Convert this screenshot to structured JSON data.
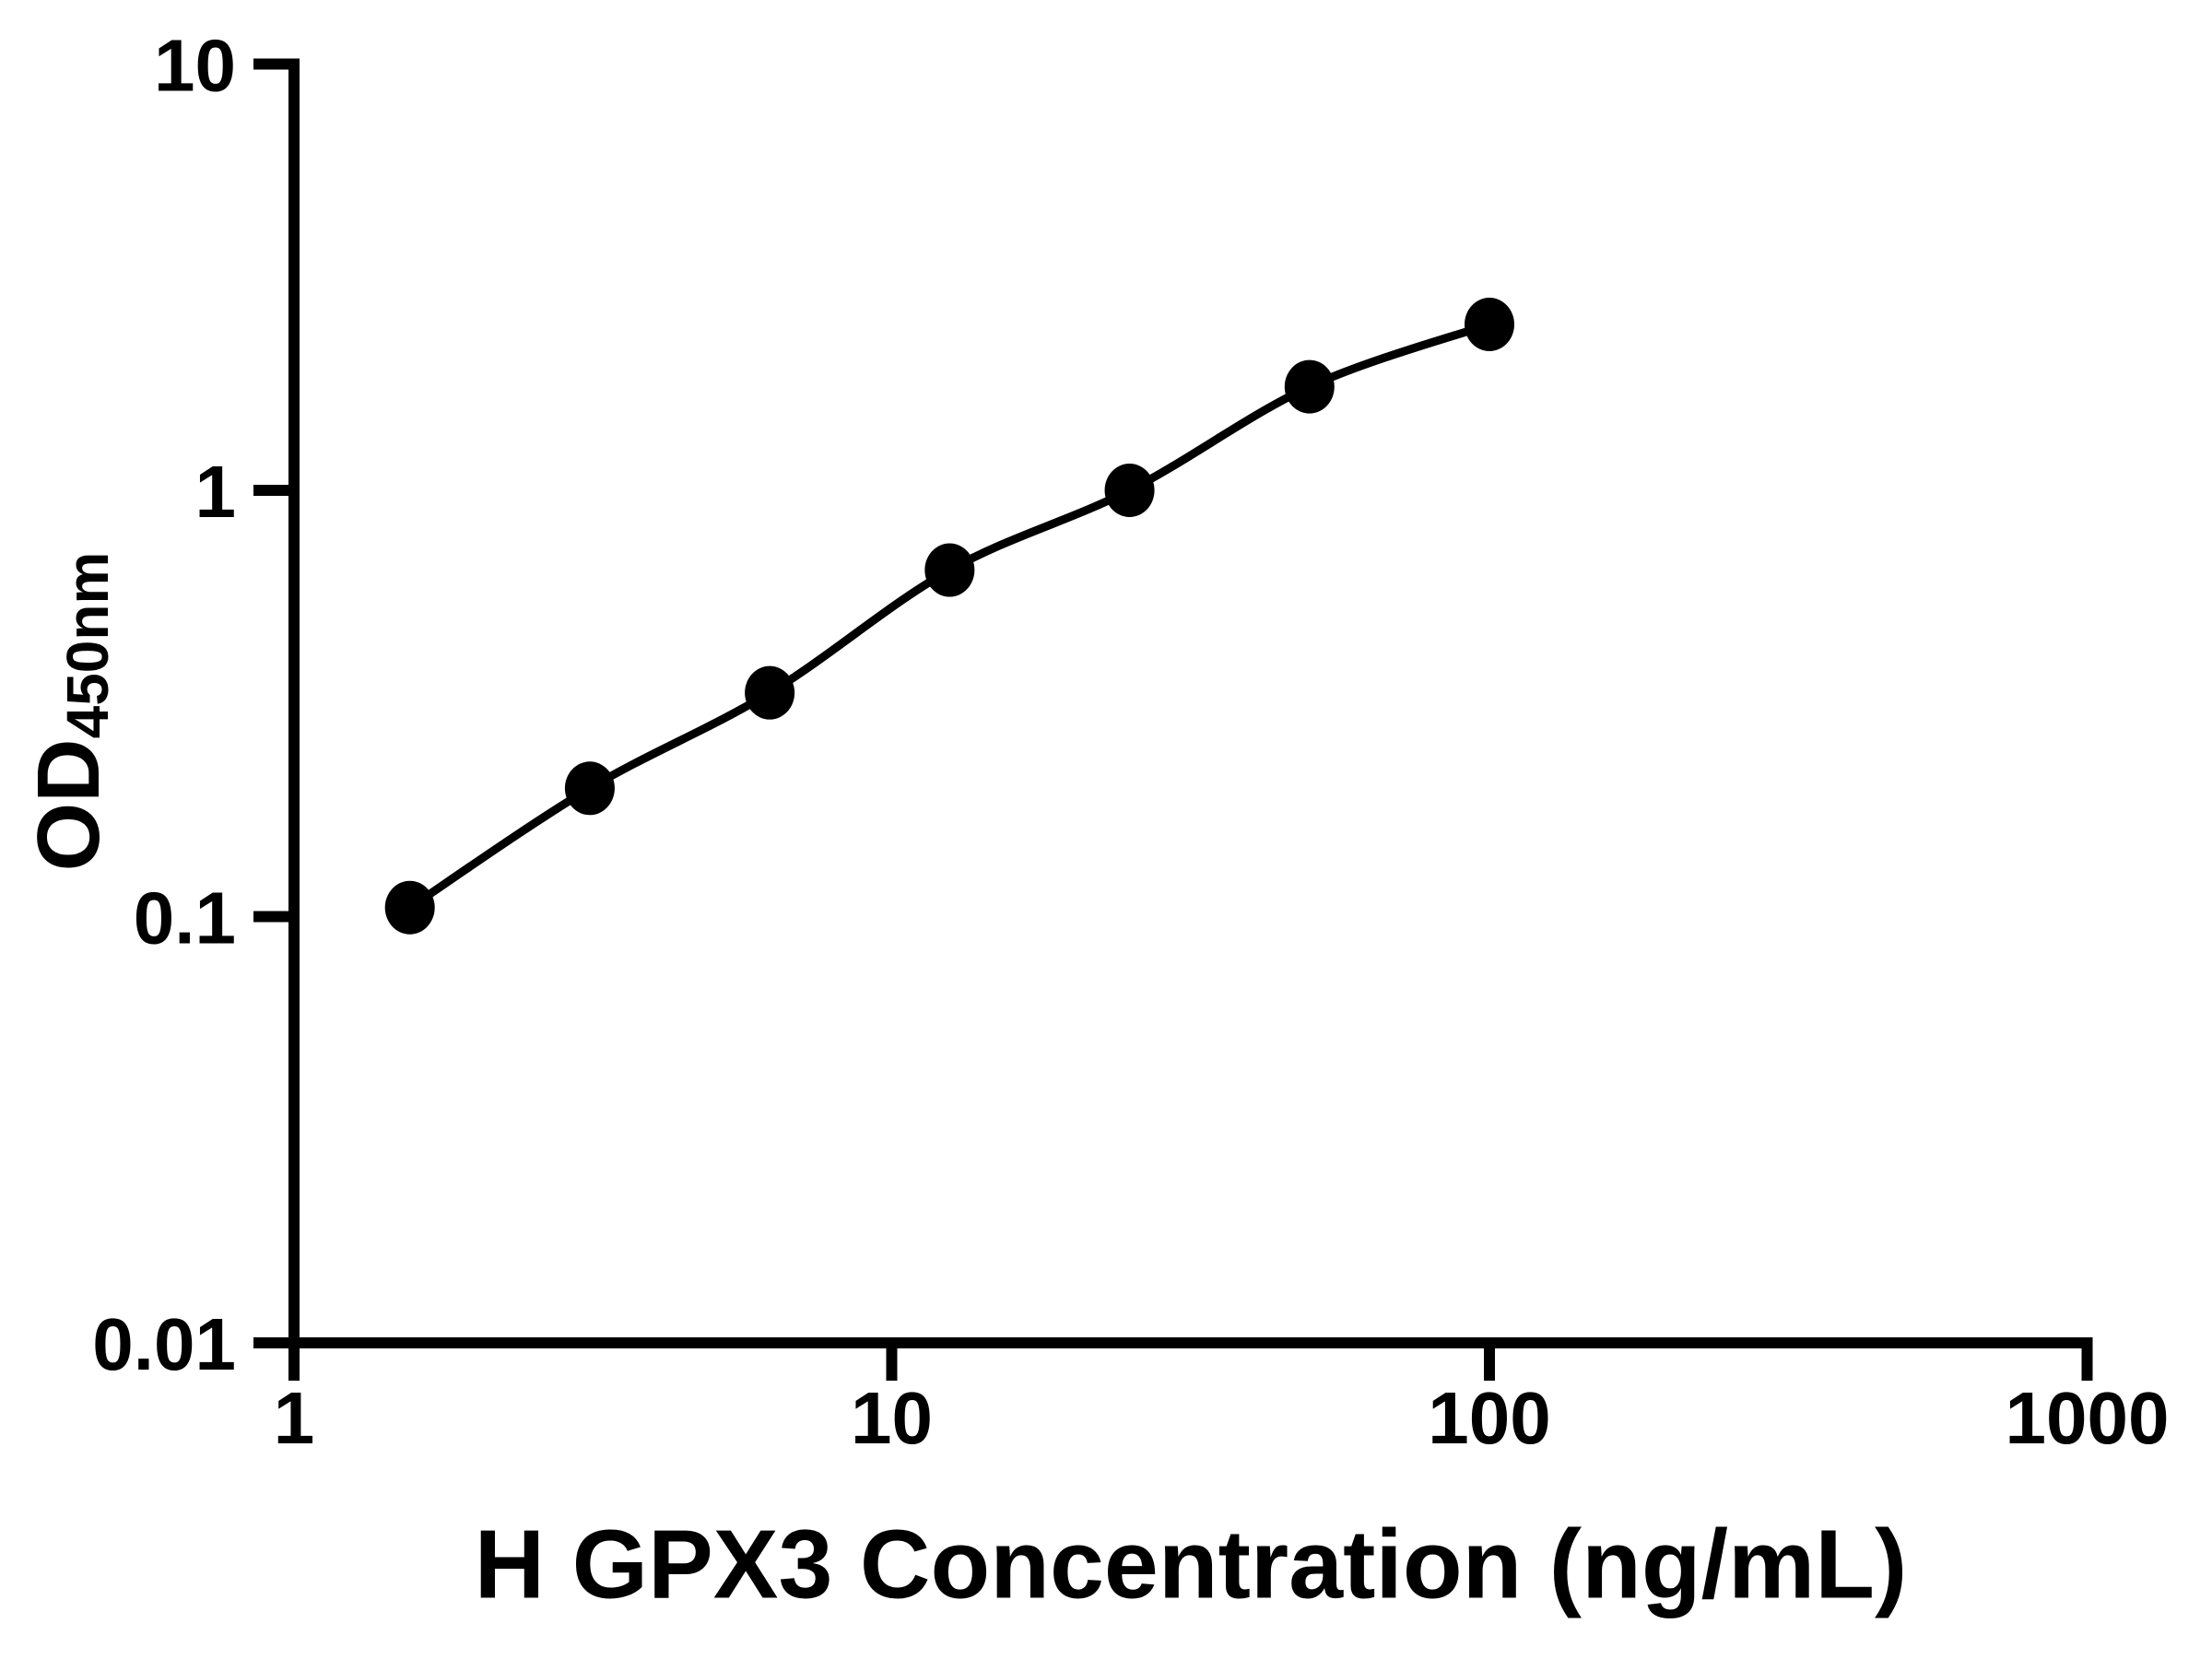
{
  "page": {
    "background": "#ffffff"
  },
  "chart_data": {
    "type": "scatter",
    "subtype": "standard-curve",
    "line_through_points": true,
    "x": [
      1.5625,
      3.125,
      6.25,
      12.5,
      25,
      50,
      100
    ],
    "y": [
      0.105,
      0.2,
      0.335,
      0.65,
      1.0,
      1.75,
      2.45
    ],
    "title": "",
    "xlabel": "H GPX3 Concentration (ng/mL)",
    "ylabel": "OD450nm",
    "ylabel_main": "OD",
    "ylabel_sub": "450nm",
    "x_scale": "log10",
    "y_scale": "log10",
    "xlim": [
      1,
      1000
    ],
    "ylim": [
      0.01,
      10
    ],
    "x_ticks": [
      "1",
      "10",
      "100",
      "1000"
    ],
    "y_ticks": [
      "0.01",
      "0.1",
      "1",
      "10"
    ],
    "grid": false,
    "legend": false,
    "marker_shape": "filled-circle",
    "marker_color": "#000000",
    "line_color": "#000000",
    "axis_color": "#000000",
    "tick_label_color": "#000000"
  }
}
